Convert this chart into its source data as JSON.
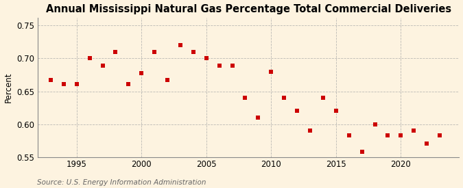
{
  "title": "Annual Mississippi Natural Gas Percentage Total Commercial Deliveries",
  "ylabel": "Percent",
  "source": "Source: U.S. Energy Information Administration",
  "background_color": "#fdf3e0",
  "marker_color": "#cc0000",
  "years": [
    1993,
    1994,
    1995,
    1996,
    1997,
    1998,
    1999,
    2000,
    2001,
    2002,
    2003,
    2004,
    2005,
    2006,
    2007,
    2008,
    2009,
    2010,
    2011,
    2012,
    2013,
    2014,
    2015,
    2016,
    2017,
    2018,
    2019,
    2020,
    2021,
    2022,
    2023
  ],
  "values": [
    0.667,
    0.661,
    0.661,
    0.7,
    0.689,
    0.71,
    0.661,
    0.678,
    0.71,
    0.667,
    0.72,
    0.71,
    0.7,
    0.689,
    0.689,
    0.64,
    0.61,
    0.68,
    0.64,
    0.62,
    0.59,
    0.64,
    0.62,
    0.583,
    0.558,
    0.6,
    0.583,
    0.583,
    0.59,
    0.57,
    0.583
  ],
  "xlim": [
    1992.0,
    2024.5
  ],
  "ylim": [
    0.55,
    0.762
  ],
  "yticks": [
    0.55,
    0.6,
    0.65,
    0.7,
    0.75
  ],
  "xticks": [
    1995,
    2000,
    2005,
    2010,
    2015,
    2020
  ],
  "grid_color": "#aaaaaa",
  "title_fontsize": 10.5,
  "label_fontsize": 8.5,
  "tick_fontsize": 8.5,
  "source_fontsize": 7.5
}
